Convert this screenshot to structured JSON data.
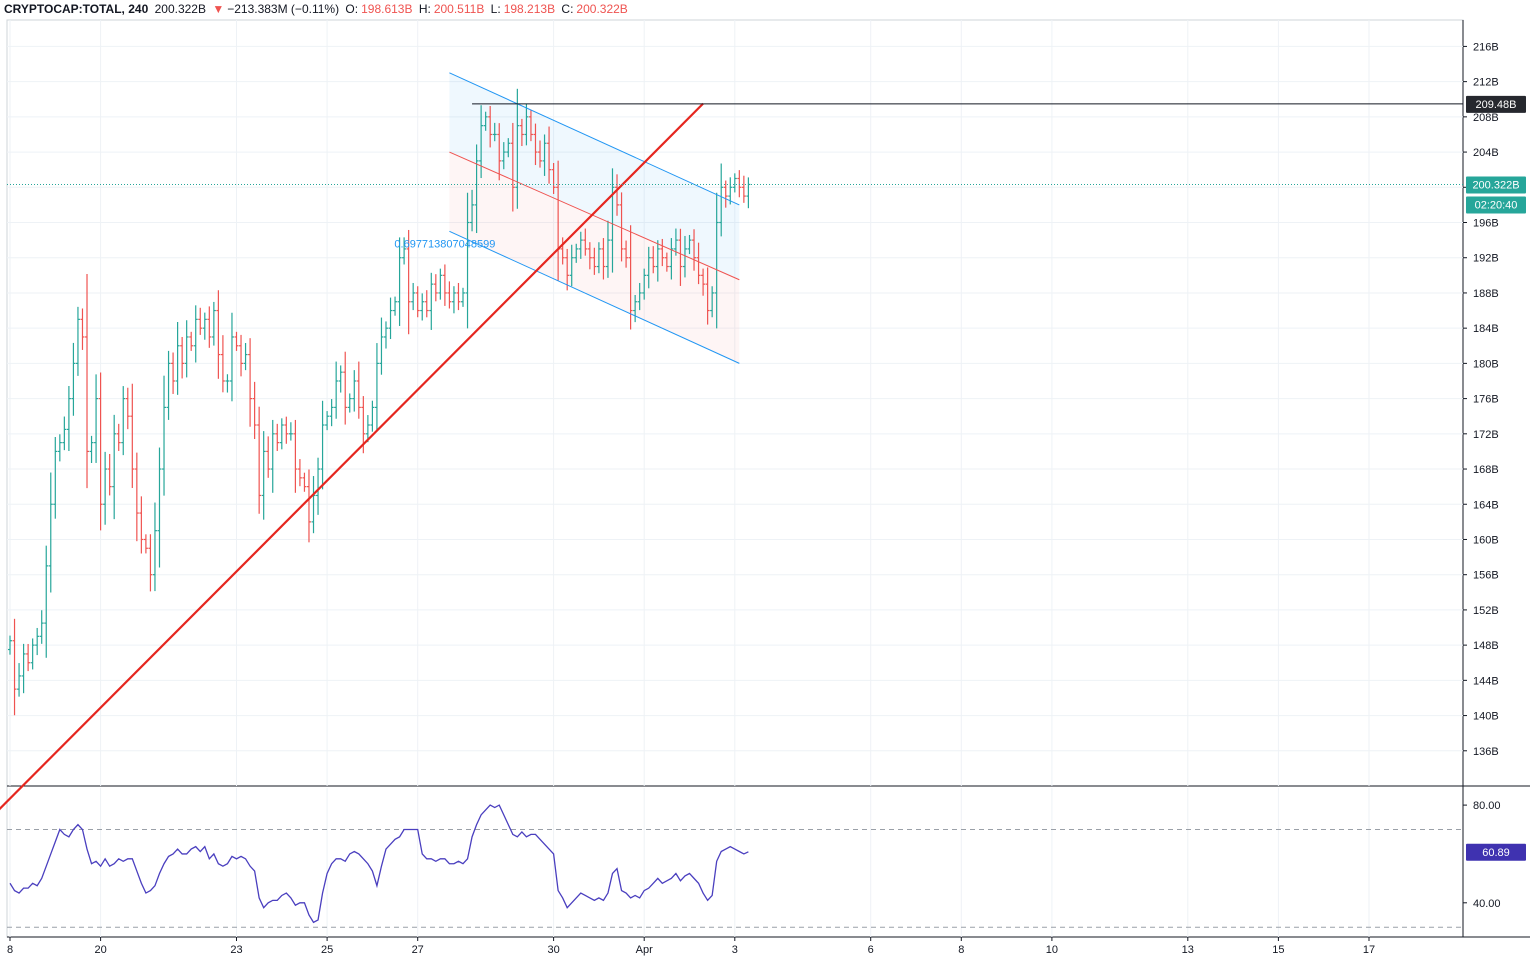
{
  "header": {
    "symbol": "CRYPTOCAP:TOTAL, 240",
    "last": "200.322B",
    "change_arrow": "▼",
    "change": "−213.383M (−0.11%)",
    "o_label": "O:",
    "o": "198.613B",
    "h_label": "H:",
    "h": "200.511B",
    "l_label": "L:",
    "l": "198.213B",
    "c_label": "C:",
    "c": "200.322B"
  },
  "badges": {
    "level": "209.48B",
    "price": "200.322B",
    "countdown": "02:20:40",
    "rsi": "60.89"
  },
  "channel_label": "0.697713807048599",
  "colors": {
    "up": "#26a69a",
    "down": "#ef5350",
    "trend": "#e5261f",
    "channel": "#2196f3",
    "rsi": "#4a3fbf",
    "grid": "#eef2f6",
    "price_line": "#26a69a"
  },
  "chart_data": [
    {
      "type": "ohlc",
      "ylim": [
        132,
        219
      ],
      "yticks": [
        "216B",
        "212B",
        "208B",
        "204B",
        "200B",
        "196B",
        "192B",
        "188B",
        "184B",
        "180B",
        "176B",
        "172B",
        "168B",
        "164B",
        "160B",
        "156B",
        "152B",
        "148B",
        "144B",
        "140B",
        "136B"
      ],
      "ytick_values": [
        216,
        212,
        208,
        204,
        200,
        196,
        192,
        188,
        184,
        180,
        176,
        172,
        168,
        164,
        160,
        156,
        152,
        148,
        144,
        140,
        136
      ],
      "xticks": [
        "8",
        "20",
        "23",
        "25",
        "27",
        "30",
        "Apr",
        "3",
        "6",
        "8",
        "10",
        "13",
        "15",
        "17"
      ],
      "xtick_bar_index": [
        0,
        20,
        50,
        70,
        90,
        120,
        140,
        160,
        190,
        210,
        230,
        260,
        280,
        300
      ],
      "close_series": [
        148.5,
        143,
        144.5,
        147,
        146,
        148,
        149,
        150.5,
        157,
        164,
        170,
        171,
        172.5,
        176,
        180,
        185,
        183,
        170,
        171,
        176,
        164,
        168,
        166,
        172,
        171,
        176,
        174,
        168,
        163,
        160,
        159,
        156,
        161,
        168,
        175,
        180,
        178,
        182,
        180,
        183,
        182,
        185,
        184,
        185,
        183,
        186,
        181,
        178,
        178,
        183,
        182,
        180,
        181,
        176,
        173,
        165,
        170,
        168,
        172,
        171,
        173,
        172,
        172,
        168,
        167,
        166,
        162,
        165,
        168,
        173,
        174,
        175,
        178,
        179,
        175,
        176,
        178,
        175,
        172,
        173,
        175,
        180,
        183,
        184,
        186,
        187,
        192,
        193,
        187,
        188,
        186,
        187,
        186,
        189,
        188,
        190,
        188,
        187,
        188,
        187,
        188,
        196,
        198,
        203,
        207,
        208,
        206,
        206,
        203,
        204,
        205,
        200,
        207,
        206,
        208,
        206,
        204,
        203,
        205,
        202,
        200,
        193,
        192,
        190,
        192,
        193,
        194,
        193,
        192,
        191,
        193,
        191,
        194,
        200,
        198,
        193,
        192,
        186,
        187,
        188,
        190,
        192,
        191,
        193,
        192,
        191,
        193,
        194,
        191,
        193,
        194,
        192,
        190,
        189,
        186,
        188,
        196,
        200,
        199,
        200,
        201,
        200,
        199,
        200.322
      ],
      "rsi_series": [
        48,
        45,
        44,
        46,
        46,
        48,
        47,
        50,
        55,
        60,
        65,
        70,
        68,
        67,
        70,
        72,
        70,
        62,
        56,
        57,
        55,
        58,
        55,
        56,
        58,
        57,
        58,
        58,
        53,
        48,
        44,
        45,
        47,
        52,
        56,
        59,
        60,
        62,
        60,
        60,
        62,
        63,
        61,
        63,
        58,
        60,
        56,
        55,
        56,
        59,
        58,
        59,
        58,
        55,
        53,
        42,
        38,
        40,
        41,
        41,
        43,
        44,
        42,
        39,
        40,
        40,
        35,
        32,
        33,
        44,
        52,
        56,
        58,
        58,
        57,
        60,
        61,
        60,
        58,
        56,
        53,
        47,
        55,
        62,
        64,
        66,
        67,
        70,
        70,
        70,
        70,
        60,
        58,
        58,
        57,
        58,
        58,
        56,
        56,
        57,
        56,
        58,
        67,
        72,
        76,
        78,
        80,
        79,
        80,
        76,
        72,
        68,
        67,
        69,
        67,
        68,
        68,
        66,
        64,
        62,
        60,
        45,
        42,
        38,
        40,
        42,
        44,
        43,
        42,
        41,
        42,
        41,
        44,
        52,
        54,
        45,
        44,
        42,
        43,
        42,
        45,
        46,
        48,
        50,
        48,
        49,
        50,
        52,
        49,
        51,
        52,
        50,
        48,
        44,
        41,
        43,
        57,
        61,
        62,
        63,
        62,
        61,
        60,
        60.89
      ],
      "rsi_ylim": [
        26,
        87
      ],
      "rsi_ticks": [
        "80.00",
        "40.00"
      ],
      "rsi_tick_values": [
        80,
        40
      ],
      "rsi_dashed": [
        70,
        30
      ],
      "horizontal_level": 209.48,
      "last_price": 200.322,
      "trendline": [
        [
          -5,
          128
        ],
        [
          153,
          209.5
        ]
      ],
      "channel": {
        "start_bar": 97,
        "end_bar": 161,
        "upper": [
          213,
          198
        ],
        "middle": [
          204,
          189.5
        ],
        "lower": [
          195,
          180
        ]
      }
    }
  ]
}
